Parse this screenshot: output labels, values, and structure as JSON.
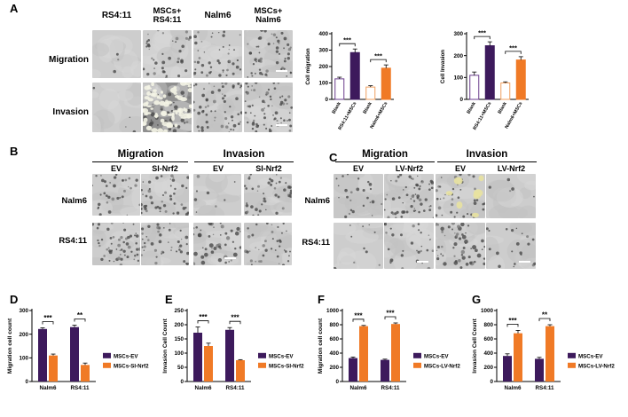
{
  "panels": {
    "A": "A",
    "B": "B",
    "C": "C",
    "D": "D",
    "E": "E",
    "F": "F",
    "G": "G"
  },
  "panelA": {
    "columns": [
      "RS4:11",
      "MSCs+\nRS4:11",
      "Nalm6",
      "MSCs+\nNalm6"
    ],
    "rows": [
      "Migration",
      "Invasion"
    ]
  },
  "panelB": {
    "groups": [
      "Migration",
      "Invasion"
    ],
    "subs": [
      "EV",
      "SI-Nrf2",
      "EV",
      "SI-Nrf2"
    ],
    "rows": [
      "Nalm6",
      "RS4:11"
    ]
  },
  "panelC": {
    "groups": [
      "Migration",
      "Invasion"
    ],
    "subs": [
      "EV",
      "LV-Nrf2",
      "EV",
      "LV-Nrf2"
    ],
    "rows": [
      "Nalm6",
      "RS4:11"
    ]
  },
  "colors": {
    "purple": "#3d1a5c",
    "orange": "#f07a26",
    "outline_purple": "#6a3d8c",
    "outline_orange": "#f0a060"
  },
  "chart_data": [
    {
      "id": "A-migration",
      "type": "bar",
      "ylabel": "Cell migration",
      "ylim": [
        0,
        400
      ],
      "yticks": [
        0,
        100,
        200,
        300,
        400
      ],
      "categories": [
        "Blank",
        "RS4:11+MSCs",
        "Blank",
        "Nalm6+MSCs"
      ],
      "values": [
        125,
        285,
        75,
        190
      ],
      "errors": [
        10,
        22,
        8,
        20
      ],
      "fills": [
        "#ffffff",
        "#3d1a5c",
        "#ffffff",
        "#f07a26"
      ],
      "strokes": [
        "#6a3d8c",
        "#3d1a5c",
        "#f0a060",
        "#f07a26"
      ],
      "significance": [
        {
          "from": 0,
          "to": 1,
          "label": "***"
        },
        {
          "from": 2,
          "to": 3,
          "label": "***"
        }
      ]
    },
    {
      "id": "A-invasion",
      "type": "bar",
      "ylabel": "Cell Invasion",
      "ylim": [
        0,
        300
      ],
      "yticks": [
        0,
        100,
        200,
        300
      ],
      "categories": [
        "Blank",
        "RS4:11+MSCs",
        "Blank",
        "Nalm6+MSCs"
      ],
      "values": [
        110,
        245,
        75,
        180
      ],
      "errors": [
        15,
        18,
        5,
        15
      ],
      "fills": [
        "#ffffff",
        "#3d1a5c",
        "#ffffff",
        "#f07a26"
      ],
      "strokes": [
        "#6a3d8c",
        "#3d1a5c",
        "#f0a060",
        "#f07a26"
      ],
      "significance": [
        {
          "from": 0,
          "to": 1,
          "label": "***"
        },
        {
          "from": 2,
          "to": 3,
          "label": "***"
        }
      ]
    },
    {
      "id": "D",
      "type": "bar",
      "ylabel": "Migration cell count",
      "ylim": [
        0,
        300
      ],
      "yticks": [
        0,
        100,
        200,
        300
      ],
      "categories": [
        "Nalm6",
        "RS4:11"
      ],
      "series": [
        {
          "name": "MSCs-EV",
          "values": [
            222,
            230
          ],
          "errors": [
            5,
            8
          ],
          "color": "#3d1a5c"
        },
        {
          "name": "MSCs-SI-Nrf2",
          "values": [
            110,
            70
          ],
          "errors": [
            6,
            8
          ],
          "color": "#f07a26"
        }
      ],
      "significance": [
        {
          "group": 0,
          "label": "***"
        },
        {
          "group": 1,
          "label": "**"
        }
      ]
    },
    {
      "id": "E",
      "type": "bar",
      "ylabel": "Invasion Cell Count",
      "ylim": [
        0,
        250
      ],
      "yticks": [
        0,
        50,
        100,
        150,
        200,
        250
      ],
      "categories": [
        "Nalm6",
        "RS4:11"
      ],
      "series": [
        {
          "name": "MSCs-EV",
          "values": [
            172,
            182
          ],
          "errors": [
            20,
            8
          ],
          "color": "#3d1a5c"
        },
        {
          "name": "MSCs-SI-Nrf2",
          "values": [
            125,
            75
          ],
          "errors": [
            10,
            2
          ],
          "color": "#f07a26"
        }
      ],
      "significance": [
        {
          "group": 0,
          "label": "***"
        },
        {
          "group": 1,
          "label": "***"
        }
      ]
    },
    {
      "id": "F",
      "type": "bar",
      "ylabel": "Migration cell count",
      "ylim": [
        0,
        1000
      ],
      "yticks": [
        0,
        200,
        400,
        600,
        800,
        1000
      ],
      "categories": [
        "Nalm6",
        "RS4:11"
      ],
      "series": [
        {
          "name": "MSCs-EV",
          "values": [
            330,
            305
          ],
          "errors": [
            15,
            10
          ],
          "color": "#3d1a5c"
        },
        {
          "name": "MSCs-LV-Nrf2",
          "values": [
            780,
            810
          ],
          "errors": [
            10,
            15
          ],
          "color": "#f07a26"
        }
      ],
      "significance": [
        {
          "group": 0,
          "label": "***"
        },
        {
          "group": 1,
          "label": "***"
        }
      ]
    },
    {
      "id": "G",
      "type": "bar",
      "ylabel": "Invasion Cell Count",
      "ylim": [
        0,
        1000
      ],
      "yticks": [
        0,
        200,
        400,
        600,
        800,
        1000
      ],
      "categories": [
        "Nalm6",
        "RS4:11"
      ],
      "series": [
        {
          "name": "MSCs-EV",
          "values": [
            360,
            320
          ],
          "errors": [
            30,
            20
          ],
          "color": "#3d1a5c"
        },
        {
          "name": "MSCs-LV-Nrf2",
          "values": [
            680,
            780
          ],
          "errors": [
            40,
            20
          ],
          "color": "#f07a26"
        }
      ],
      "significance": [
        {
          "group": 0,
          "label": "***"
        },
        {
          "group": 1,
          "label": "**"
        }
      ]
    }
  ]
}
